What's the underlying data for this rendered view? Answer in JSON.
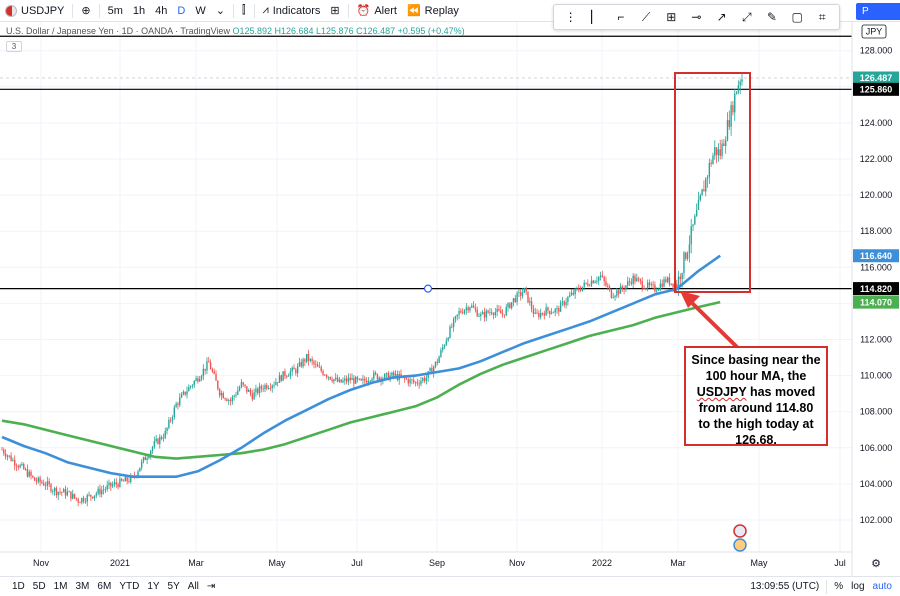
{
  "toolbar": {
    "symbol": "USDJPY",
    "intervals": [
      "5m",
      "1h",
      "4h",
      "D",
      "W"
    ],
    "selected_interval": "D",
    "indicators_label": "Indicators",
    "alert_label": "Alert",
    "replay_label": "Replay",
    "publish_label": "P"
  },
  "legend": {
    "title": "U.S. Dollar / Japanese Yen · 1D · OANDA · TradingView",
    "ohlc": "O125.892 H126.684 L125.876 C126.487 +0.595 (+0.47%)",
    "indicator_count": "3"
  },
  "bottom": {
    "ranges": [
      "1D",
      "5D",
      "1M",
      "3M",
      "6M",
      "YTD",
      "1Y",
      "5Y",
      "All"
    ],
    "clock": "13:09:55 (UTC)",
    "percent": "%",
    "log": "log",
    "auto": "auto"
  },
  "annotation": {
    "line1": "Since basing near the",
    "line2": "100 hour MA, the",
    "line3": "USDJPY",
    "line3b": " has moved",
    "line4": "from around 114.80",
    "line5": "to the high today at",
    "line6": "126.68."
  },
  "chart_data": {
    "type": "candlestick",
    "currency": "JPY",
    "x_ticks": [
      "Nov",
      "2021",
      "Mar",
      "May",
      "Jul",
      "Sep",
      "Nov",
      "2022",
      "Mar",
      "May",
      "Jul"
    ],
    "y_ticks": [
      102.0,
      104.0,
      106.0,
      108.0,
      110.0,
      112.0,
      114.0,
      116.0,
      118.0,
      120.0,
      122.0,
      124.0,
      126.0,
      128.0
    ],
    "ylim": [
      101.2,
      129.0
    ],
    "price_labels": [
      {
        "value": 126.487,
        "text": "126.487",
        "color": "#26a69a"
      },
      {
        "value": 125.86,
        "text": "125.860",
        "color": "#000000"
      },
      {
        "value": 116.64,
        "text": "116.640",
        "color": "#3d8fd9"
      },
      {
        "value": 114.82,
        "text": "114.820",
        "color": "#000000"
      },
      {
        "value": 114.07,
        "text": "114.070",
        "color": "#4caf50"
      }
    ],
    "horizontal_lines": [
      128.8,
      125.86,
      114.82
    ],
    "ma_fast": {
      "name": "",
      "color": "#3d8fd9",
      "values": [
        [
          0,
          106.6
        ],
        [
          12,
          106.1
        ],
        [
          24,
          105.7
        ],
        [
          36,
          105.2
        ],
        [
          48,
          104.9
        ],
        [
          60,
          104.6
        ],
        [
          72,
          104.4
        ],
        [
          84,
          104.4
        ],
        [
          96,
          104.4
        ],
        [
          108,
          104.7
        ],
        [
          120,
          105.3
        ],
        [
          132,
          106.0
        ],
        [
          144,
          106.8
        ],
        [
          156,
          107.5
        ],
        [
          168,
          108.1
        ],
        [
          180,
          108.7
        ],
        [
          192,
          109.2
        ],
        [
          204,
          109.6
        ],
        [
          216,
          109.9
        ],
        [
          228,
          110.0
        ],
        [
          240,
          110.2
        ],
        [
          252,
          110.4
        ],
        [
          264,
          110.8
        ],
        [
          276,
          111.3
        ],
        [
          288,
          111.8
        ],
        [
          300,
          112.2
        ],
        [
          312,
          112.6
        ],
        [
          324,
          113.0
        ],
        [
          336,
          113.5
        ],
        [
          348,
          114.0
        ],
        [
          360,
          114.5
        ],
        [
          372,
          114.8
        ],
        [
          384,
          115.8
        ],
        [
          396,
          116.64
        ]
      ]
    },
    "ma_slow": {
      "name": "",
      "color": "#4caf50",
      "values": [
        [
          0,
          107.5
        ],
        [
          12,
          107.3
        ],
        [
          24,
          107.0
        ],
        [
          36,
          106.7
        ],
        [
          48,
          106.4
        ],
        [
          60,
          106.1
        ],
        [
          72,
          105.8
        ],
        [
          84,
          105.5
        ],
        [
          96,
          105.4
        ],
        [
          108,
          105.5
        ],
        [
          120,
          105.6
        ],
        [
          132,
          105.7
        ],
        [
          144,
          105.9
        ],
        [
          156,
          106.2
        ],
        [
          168,
          106.6
        ],
        [
          180,
          107.0
        ],
        [
          192,
          107.4
        ],
        [
          204,
          107.7
        ],
        [
          216,
          108.0
        ],
        [
          228,
          108.3
        ],
        [
          240,
          108.8
        ],
        [
          252,
          109.5
        ],
        [
          264,
          110.1
        ],
        [
          276,
          110.6
        ],
        [
          288,
          111.0
        ],
        [
          300,
          111.4
        ],
        [
          312,
          111.8
        ],
        [
          324,
          112.2
        ],
        [
          336,
          112.5
        ],
        [
          348,
          112.8
        ],
        [
          360,
          113.2
        ],
        [
          372,
          113.5
        ],
        [
          384,
          113.8
        ],
        [
          396,
          114.07
        ]
      ]
    },
    "price_anchors": [
      [
        0,
        105.9
      ],
      [
        6,
        105.3
      ],
      [
        12,
        104.8
      ],
      [
        18,
        104.2
      ],
      [
        24,
        104.0
      ],
      [
        30,
        103.6
      ],
      [
        36,
        103.5
      ],
      [
        42,
        103.1
      ],
      [
        48,
        103.3
      ],
      [
        54,
        103.6
      ],
      [
        60,
        103.9
      ],
      [
        66,
        104.1
      ],
      [
        72,
        104.3
      ],
      [
        78,
        105.3
      ],
      [
        84,
        106.2
      ],
      [
        90,
        106.8
      ],
      [
        96,
        108.4
      ],
      [
        102,
        109.2
      ],
      [
        108,
        109.9
      ],
      [
        114,
        110.7
      ],
      [
        120,
        109.1
      ],
      [
        126,
        108.6
      ],
      [
        132,
        109.5
      ],
      [
        138,
        108.9
      ],
      [
        144,
        109.4
      ],
      [
        150,
        109.6
      ],
      [
        156,
        110.1
      ],
      [
        162,
        110.3
      ],
      [
        168,
        111.0
      ],
      [
        174,
        110.4
      ],
      [
        180,
        110.0
      ],
      [
        186,
        109.6
      ],
      [
        192,
        109.8
      ],
      [
        198,
        109.6
      ],
      [
        204,
        110.0
      ],
      [
        210,
        109.9
      ],
      [
        216,
        110.0
      ],
      [
        222,
        109.8
      ],
      [
        228,
        109.6
      ],
      [
        234,
        109.9
      ],
      [
        240,
        110.8
      ],
      [
        246,
        112.3
      ],
      [
        252,
        113.5
      ],
      [
        258,
        113.9
      ],
      [
        264,
        113.3
      ],
      [
        270,
        113.6
      ],
      [
        276,
        113.4
      ],
      [
        282,
        114.2
      ],
      [
        288,
        114.7
      ],
      [
        294,
        113.3
      ],
      [
        300,
        113.6
      ],
      [
        306,
        113.6
      ],
      [
        312,
        114.3
      ],
      [
        318,
        114.8
      ],
      [
        324,
        115.2
      ],
      [
        330,
        115.5
      ],
      [
        336,
        114.5
      ],
      [
        342,
        114.8
      ],
      [
        348,
        115.4
      ],
      [
        354,
        115.0
      ],
      [
        360,
        114.8
      ],
      [
        366,
        115.3
      ],
      [
        372,
        115.0
      ],
      [
        378,
        117.1
      ],
      [
        384,
        119.3
      ],
      [
        390,
        121.6
      ],
      [
        393,
        122.5
      ],
      [
        396,
        122.3
      ],
      [
        402,
        124.6
      ],
      [
        405,
        125.9
      ],
      [
        407,
        126.487
      ]
    ],
    "total_days": 408
  }
}
